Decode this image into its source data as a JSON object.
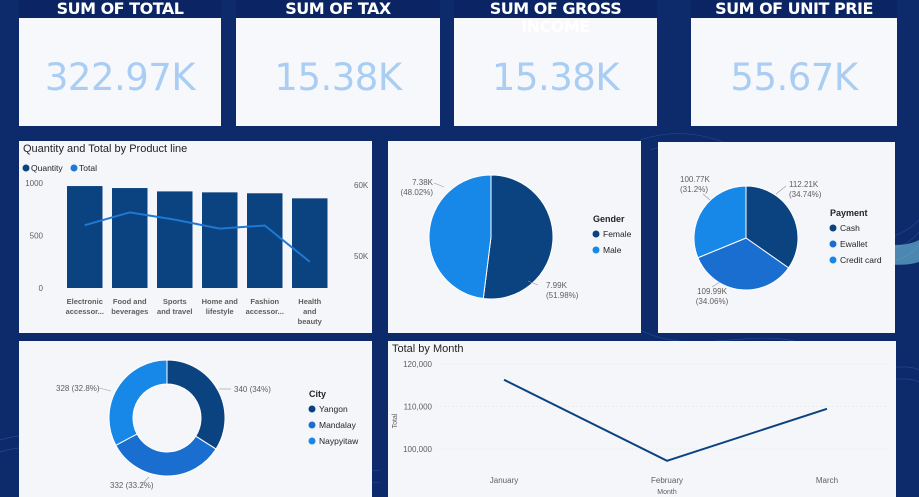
{
  "kpis": [
    {
      "label": "SUM OF TOTAL",
      "value": "322.97K"
    },
    {
      "label": "SUM OF TAX",
      "value": "15.38K"
    },
    {
      "label": "SUM OF GROSS INCOME",
      "value": "15.38K"
    },
    {
      "label": "SUM OF UNIT PRIE",
      "value": "55.67K"
    }
  ],
  "colors": {
    "dark": "#0b4381",
    "mid": "#1a6ed0",
    "light": "#1787e8",
    "line": "#1f78d1",
    "kpi": "#a9cdf3",
    "header": "#0b2463"
  },
  "chart_data": [
    {
      "type": "bar",
      "title": "Quantity and Total by Product line",
      "legend": [
        "Quantity",
        "Total"
      ],
      "categories": [
        [
          "Electronic",
          "accessor..."
        ],
        [
          "Food and",
          "beverages"
        ],
        [
          "Sports",
          "and travel"
        ],
        [
          "Home and",
          "lifestyle"
        ],
        [
          "Fashion",
          "accessor..."
        ],
        [
          "Health",
          "and",
          "beauty"
        ]
      ],
      "series": [
        {
          "name": "Quantity",
          "values": [
            971,
            952,
            920,
            911,
            902,
            854
          ]
        },
        {
          "name": "Total",
          "values": [
            54340,
            56145,
            55120,
            53860,
            54300,
            49190
          ]
        }
      ],
      "ylim": [
        0,
        1000
      ],
      "y2lim": [
        45000,
        60000
      ],
      "yticks": [
        "1000",
        "500",
        "0"
      ],
      "y2ticks": [
        "60K",
        "50K"
      ]
    },
    {
      "type": "pie",
      "legend_title": "Gender",
      "slices": [
        {
          "name": "Female",
          "value": 7.99,
          "label": [
            "7.99K",
            "(51.98%)"
          ]
        },
        {
          "name": "Male",
          "value": 7.38,
          "label": [
            "7.38K",
            "(48.02%)"
          ]
        }
      ]
    },
    {
      "type": "pie",
      "legend_title": "Payment",
      "slices": [
        {
          "name": "Cash",
          "value": 112.21,
          "label": [
            "112.21K",
            "(34.74%)"
          ]
        },
        {
          "name": "Ewallet",
          "value": 109.99,
          "label": [
            "109.99K",
            "(34.06%)"
          ]
        },
        {
          "name": "Credit card",
          "value": 100.77,
          "label": [
            "100.77K",
            "(31.2%)"
          ]
        }
      ]
    },
    {
      "type": "pie",
      "legend_title": "City",
      "slices": [
        {
          "name": "Yangon",
          "value": 340,
          "label": [
            "340 (34%)"
          ]
        },
        {
          "name": "Mandalay",
          "value": 332,
          "label": [
            "332 (33.2%)"
          ]
        },
        {
          "name": "Naypyitaw",
          "value": 328,
          "label": [
            "328 (32.8%)"
          ]
        }
      ]
    },
    {
      "type": "line",
      "title": "Total by Month",
      "categories": [
        "January",
        "February",
        "March"
      ],
      "values": [
        116291,
        97219,
        109456
      ],
      "ylim": [
        96000,
        122000
      ],
      "yticks": [
        "120,000",
        "110,000",
        "100,000"
      ],
      "ytick_values": [
        120000,
        110000,
        100000
      ],
      "ylabel": "Total",
      "xlabel": "Month"
    }
  ]
}
